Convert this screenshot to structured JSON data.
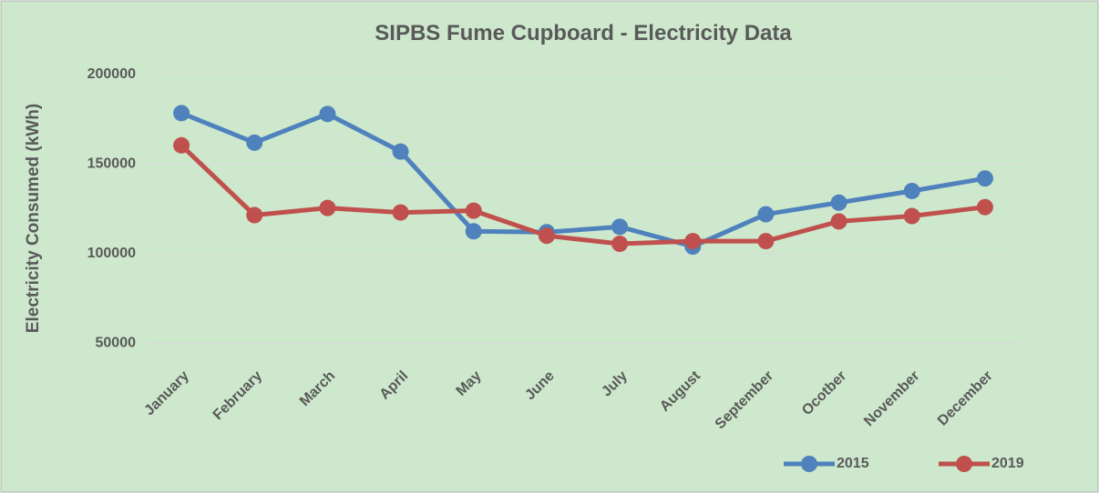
{
  "chart_data": {
    "type": "line",
    "title": "SIPBS Fume Cupboard - Electricity Data",
    "y_label": "Electricity Consumed (kWh)",
    "categories": [
      "January",
      "February",
      "March",
      "April",
      "May",
      "June",
      "July",
      "August",
      "September",
      "Ocotber",
      "November",
      "December"
    ],
    "series": [
      {
        "name": "2015",
        "color": "#4f81bd",
        "values": [
          178500,
          162000,
          178000,
          157000,
          112500,
          112000,
          115000,
          104000,
          122000,
          128500,
          135000,
          142000
        ]
      },
      {
        "name": "2019",
        "color": "#c0504d",
        "values": [
          160500,
          121500,
          125500,
          123000,
          124000,
          110000,
          105500,
          107000,
          107000,
          118000,
          121000,
          126000
        ]
      }
    ],
    "ylim": [
      40000,
      200000
    ],
    "yticks": [
      50000,
      100000,
      150000,
      200000
    ],
    "grid": true,
    "legend": "bottom-right"
  }
}
